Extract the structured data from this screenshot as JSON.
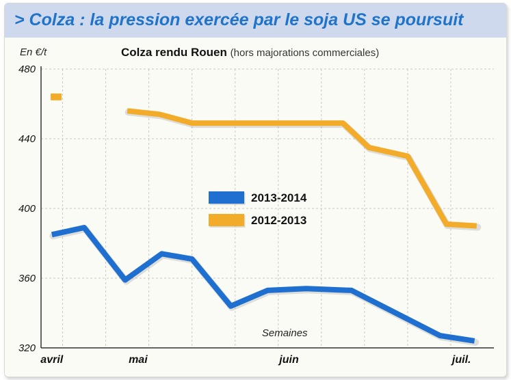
{
  "title": "> Colza : la pression exercée par le soja US se poursuit",
  "unit_label": "En €/t",
  "subtitle_bold": "Colza rendu Rouen",
  "subtitle_light": "(hors majorations commerciales)",
  "colors": {
    "title": "#1f74c9",
    "title_band": "#cfd9ee",
    "series_2013_2014": "#1e6fd0",
    "series_2012_2013": "#f3ac2a"
  },
  "chart_data": {
    "type": "line",
    "xlabel": "Semaines",
    "ylabel": "En €/t",
    "ylim": [
      320,
      480
    ],
    "yticks": [
      320,
      360,
      400,
      440,
      480
    ],
    "xlim": [
      0,
      21
    ],
    "month_ticks": [
      {
        "label": "avril",
        "x": 0.5
      },
      {
        "label": "mai",
        "x": 4.5
      },
      {
        "label": "juin",
        "x": 11.5
      },
      {
        "label": "juil.",
        "x": 19.5
      }
    ],
    "grid": true,
    "legend_position": "center",
    "series": [
      {
        "name": "2013-2014",
        "color": "#1e6fd0",
        "points": [
          [
            0.5,
            385
          ],
          [
            2.0,
            389
          ],
          [
            3.9,
            359
          ],
          [
            5.6,
            374
          ],
          [
            7.0,
            371
          ],
          [
            8.8,
            344
          ],
          [
            10.5,
            353
          ],
          [
            12.3,
            354
          ],
          [
            14.4,
            353
          ],
          [
            18.5,
            327
          ],
          [
            20.1,
            324
          ]
        ]
      },
      {
        "name": "2012-2013",
        "color": "#f3ac2a",
        "points": [
          [
            4.0,
            456
          ],
          [
            5.5,
            454
          ],
          [
            7.0,
            449
          ],
          [
            14.0,
            449
          ],
          [
            15.2,
            435
          ],
          [
            17.0,
            430
          ],
          [
            18.8,
            391
          ],
          [
            20.2,
            390
          ]
        ]
      }
    ],
    "extra_marks": [
      {
        "series": "2012-2013",
        "x": 0.7,
        "y": 464
      }
    ]
  }
}
